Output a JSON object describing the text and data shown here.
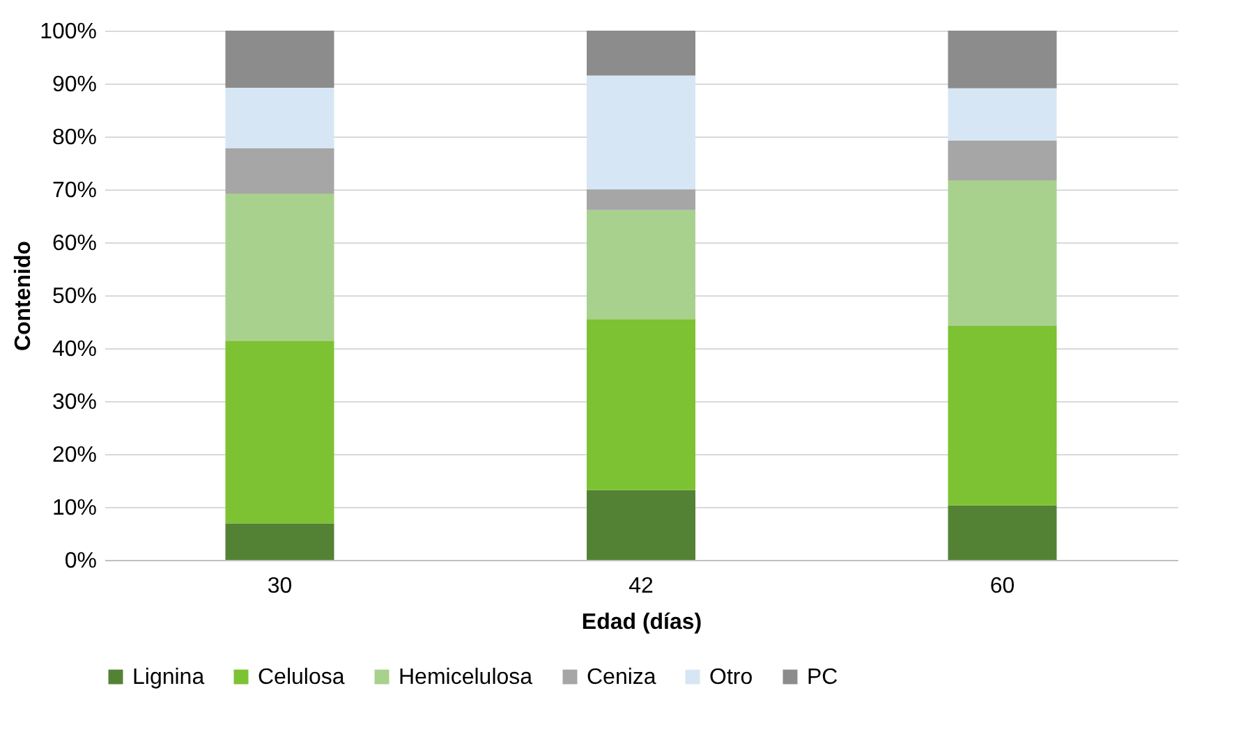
{
  "chart_data": {
    "type": "bar",
    "stacked": true,
    "xlabel": "Edad (días)",
    "ylabel": "Contenido",
    "categories": [
      "30",
      "42",
      "60"
    ],
    "series": [
      {
        "name": "Lignina",
        "color": "#548235",
        "values": [
          6.9,
          13.2,
          10.3
        ]
      },
      {
        "name": "Celulosa",
        "color": "#7dc232",
        "values": [
          34.5,
          32.3,
          33.9
        ]
      },
      {
        "name": "Hemicelulosa",
        "color": "#a9d18e",
        "values": [
          27.8,
          20.6,
          27.5
        ]
      },
      {
        "name": "Ceniza",
        "color": "#a6a6a6",
        "values": [
          8.6,
          3.9,
          7.5
        ]
      },
      {
        "name": "Otro",
        "color": "#d6e6f4",
        "values": [
          11.4,
          21.5,
          9.9
        ]
      },
      {
        "name": "PC",
        "color": "#8c8c8c",
        "values": [
          10.8,
          8.5,
          10.9
        ]
      }
    ],
    "ylim": [
      0,
      100
    ],
    "yticks": [
      {
        "value": 0,
        "label": "0%"
      },
      {
        "value": 10,
        "label": "10%"
      },
      {
        "value": 20,
        "label": "20%"
      },
      {
        "value": 30,
        "label": "30%"
      },
      {
        "value": 40,
        "label": "40%"
      },
      {
        "value": 50,
        "label": "50%"
      },
      {
        "value": 60,
        "label": "60%"
      },
      {
        "value": 70,
        "label": "70%"
      },
      {
        "value": 80,
        "label": "80%"
      },
      {
        "value": 90,
        "label": "90%"
      },
      {
        "value": 100,
        "label": "100%"
      }
    ],
    "grid": "y",
    "legend": "bottom"
  }
}
